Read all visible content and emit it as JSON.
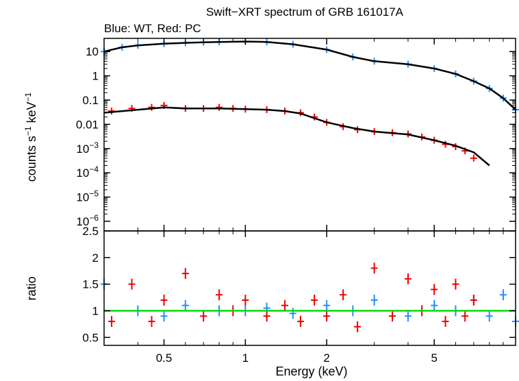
{
  "chart_data": [
    {
      "type": "scatter",
      "title": "Swift−XRT spectrum of GRB 161017A",
      "subtitle": "Blue: WT, Red: PC",
      "xlabel": "Energy (keV)",
      "ylabel_parts": {
        "main": "counts s",
        "sup1": "−1",
        "mid": " keV",
        "sup2": "−1"
      },
      "xscale": "log",
      "yscale": "log",
      "xlim": [
        0.3,
        10
      ],
      "ylim": [
        4e-07,
        35
      ],
      "yticks": [
        {
          "value": 10,
          "label": "10"
        },
        {
          "value": 1,
          "label": "1"
        },
        {
          "value": 0.1,
          "label": "0.1"
        },
        {
          "value": 0.01,
          "label": "0.01"
        },
        {
          "value": 0.001,
          "base": "10",
          "exp": "−3"
        },
        {
          "value": 0.0001,
          "base": "10",
          "exp": "−4"
        },
        {
          "value": 1e-05,
          "base": "10",
          "exp": "−5"
        },
        {
          "value": 1e-06,
          "base": "10",
          "exp": "−6"
        }
      ],
      "colors": {
        "wt": "#1e90ff",
        "pc": "#ee0000",
        "model": "#000000"
      },
      "series": [
        {
          "key": "wt",
          "x": [
            0.3,
            0.35,
            0.4,
            0.5,
            0.6,
            0.7,
            0.8,
            1.0,
            1.2,
            1.5,
            2.0,
            2.5,
            3.0,
            4.0,
            5.0,
            6.0,
            7.0,
            8.0,
            9.0,
            10.0
          ],
          "y": [
            10,
            15,
            18,
            21,
            23,
            24,
            25,
            26,
            25,
            20,
            12,
            6,
            4,
            3,
            2,
            1.2,
            0.6,
            0.3,
            0.12,
            0.04
          ]
        },
        {
          "key": "pc",
          "x": [
            0.32,
            0.38,
            0.45,
            0.5,
            0.6,
            0.7,
            0.8,
            0.9,
            1.0,
            1.2,
            1.4,
            1.6,
            1.8,
            2.0,
            2.3,
            2.6,
            3.0,
            3.5,
            4.0,
            4.5,
            5.0,
            5.5,
            6.0,
            6.5,
            7.0
          ],
          "y": [
            0.035,
            0.045,
            0.05,
            0.06,
            0.045,
            0.045,
            0.05,
            0.045,
            0.042,
            0.04,
            0.035,
            0.03,
            0.02,
            0.012,
            0.008,
            0.006,
            0.005,
            0.0045,
            0.004,
            0.003,
            0.0022,
            0.0015,
            0.0012,
            0.0008,
            0.0004
          ]
        },
        {
          "key": "wt_model",
          "x": [
            0.3,
            0.35,
            0.4,
            0.5,
            0.6,
            0.7,
            0.8,
            1.0,
            1.2,
            1.5,
            2.0,
            2.5,
            3.0,
            4.0,
            5.0,
            6.0,
            7.0,
            8.0,
            9.0,
            10.0
          ],
          "y": [
            10,
            15,
            18,
            21,
            23,
            24,
            25,
            26,
            25,
            20,
            12,
            6,
            4,
            3,
            2,
            1.2,
            0.6,
            0.3,
            0.12,
            0.04
          ]
        },
        {
          "key": "pc_model",
          "x": [
            0.3,
            0.4,
            0.5,
            0.6,
            0.8,
            1.0,
            1.2,
            1.4,
            1.6,
            2.0,
            2.5,
            3.0,
            4.0,
            5.0,
            6.0,
            7.0,
            8.0
          ],
          "y": [
            0.03,
            0.04,
            0.05,
            0.045,
            0.045,
            0.042,
            0.04,
            0.035,
            0.028,
            0.012,
            0.007,
            0.005,
            0.0038,
            0.0022,
            0.0013,
            0.0007,
            0.0002
          ]
        }
      ]
    },
    {
      "type": "scatter",
      "xlabel": "Energy (keV)",
      "ylabel": "ratio",
      "xscale": "log",
      "xlim": [
        0.3,
        10
      ],
      "ylim": [
        0.35,
        2.5
      ],
      "yticks": [
        {
          "value": 2.5,
          "label": "2.5"
        },
        {
          "value": 2,
          "label": "2"
        },
        {
          "value": 1.5,
          "label": "1.5"
        },
        {
          "value": 1,
          "label": "1"
        },
        {
          "value": 0.5,
          "label": "0.5"
        }
      ],
      "xticks": [
        {
          "value": 0.5,
          "label": "0.5"
        },
        {
          "value": 1,
          "label": "1"
        },
        {
          "value": 2,
          "label": "2"
        },
        {
          "value": 5,
          "label": "5"
        }
      ],
      "reference_line": {
        "value": 1,
        "color": "#00dd00"
      },
      "series": [
        {
          "key": "wt_ratio",
          "x": [
            0.3,
            0.4,
            0.5,
            0.6,
            0.8,
            1.0,
            1.2,
            1.5,
            2.0,
            2.5,
            3.0,
            4.0,
            5.0,
            6.0,
            7.0,
            8.0,
            9.0,
            10.0
          ],
          "y": [
            1.5,
            1.0,
            0.9,
            1.1,
            1.0,
            1.0,
            1.05,
            0.95,
            1.1,
            1.0,
            1.2,
            0.9,
            1.1,
            1.0,
            1.2,
            0.9,
            1.3,
            0.8
          ]
        },
        {
          "key": "pc_ratio",
          "x": [
            0.32,
            0.38,
            0.45,
            0.5,
            0.6,
            0.7,
            0.8,
            0.9,
            1.0,
            1.2,
            1.4,
            1.6,
            1.8,
            2.0,
            2.3,
            2.6,
            3.0,
            3.5,
            4.0,
            4.5,
            5.0,
            5.5,
            6.0,
            6.5,
            7.0
          ],
          "y": [
            0.8,
            1.5,
            0.8,
            1.2,
            1.7,
            0.9,
            1.3,
            1.0,
            1.2,
            0.9,
            1.1,
            0.8,
            1.2,
            0.9,
            1.3,
            0.7,
            1.8,
            0.9,
            1.6,
            1.0,
            1.4,
            0.8,
            1.5,
            0.9,
            1.2
          ]
        }
      ]
    }
  ]
}
